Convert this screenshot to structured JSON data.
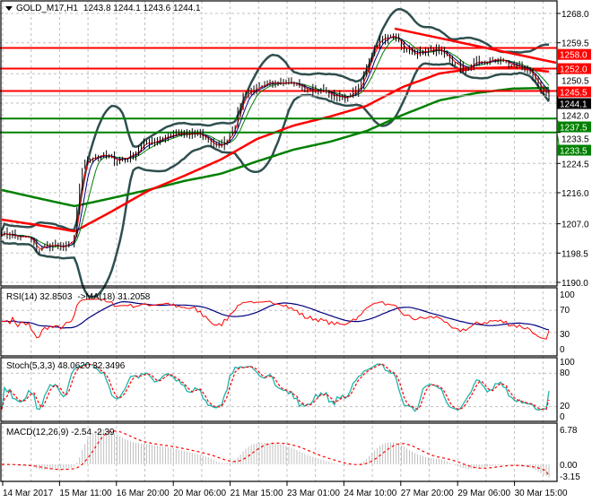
{
  "header": {
    "symbol": "GOLD_M17,H1",
    "ohlc": "1243.8 1244.1 1243.6 1244.1"
  },
  "rsi_header": {
    "label": "RSI(14) 32.8503",
    "ma": "->MA(18) 31.2058"
  },
  "stoch_header": {
    "label": "Stoch(5,3,3) 48.0620 32.3496"
  },
  "macd_header": {
    "label": "MACD(12,26,9) -2.54 -2.39"
  },
  "price_axis": [
    "1268.0",
    "1259.5",
    "1250.5",
    "1242.0",
    "1233.5",
    "1224.5",
    "1216.0",
    "1207.0",
    "1198.5",
    "1190.0"
  ],
  "rsi_axis": [
    "100",
    "70",
    "30",
    "0"
  ],
  "stoch_axis": [
    "100",
    "80",
    "20",
    "0"
  ],
  "macd_axis": [
    "6.78",
    "0.00",
    "-3.15"
  ],
  "time_axis": [
    "14 Mar 2017",
    "15 Mar 11:00",
    "16 Mar 20:00",
    "20 Mar 06:00",
    "21 Mar 15:00",
    "23 Mar 01:00",
    "24 Mar 10:00",
    "27 Mar 20:00",
    "29 Mar 06:00",
    "30 Mar 15:00"
  ],
  "levels": [
    {
      "price": 1258.0,
      "label": "1258.0",
      "color": "#ff0000"
    },
    {
      "price": 1252.0,
      "label": "1252.0",
      "color": "#ff0000"
    },
    {
      "price": 1245.5,
      "label": "1245.5",
      "color": "#ff0000"
    },
    {
      "price": 1237.5,
      "label": "1237.5",
      "color": "#008000"
    },
    {
      "price": 1233.5,
      "label": "1233.5",
      "color": "#008000"
    }
  ],
  "current_price": {
    "label": "1244.1",
    "price": 1244.1
  },
  "colors": {
    "candle": "#000000",
    "bollinger": "#2f4f4f",
    "ma_red": "#ff0000",
    "ma_green": "#008000",
    "rsi": "#ff0000",
    "rsi_ma": "#000080",
    "stoch_main": "#20b2aa",
    "stoch_signal": "#ff0000",
    "macd_hist": "#c0c0c0",
    "macd_signal": "#ff0000",
    "grid": "#c0c0c0"
  },
  "chart_data": {
    "type": "line",
    "title": "GOLD_M17,H1",
    "ylim": [
      1190.0,
      1268.0
    ],
    "close": [
      1204.3,
      1203.8,
      1203.0,
      1203.0,
      1199.1,
      1201.0,
      1200.2,
      1200.4,
      1201.7,
      1223.8,
      1226.4,
      1227.0,
      1226.0,
      1225.6,
      1226.4,
      1228.0,
      1230.3,
      1231.0,
      1232.0,
      1232.6,
      1232.9,
      1232.9,
      1232.9,
      1231.6,
      1229.0,
      1231.0,
      1236.0,
      1244.6,
      1245.9,
      1246.2,
      1248.0,
      1248.5,
      1248.0,
      1247.2,
      1245.9,
      1245.9,
      1245.1,
      1244.1,
      1243.3,
      1245.1,
      1246.7,
      1255.0,
      1260.2,
      1261.0,
      1260.2,
      1257.6,
      1256.3,
      1256.8,
      1257.3,
      1257.6,
      1253.7,
      1252.4,
      1252.4,
      1253.7,
      1254.2,
      1254.5,
      1254.2,
      1253.2,
      1252.4,
      1251.1,
      1245.5,
      1244.1
    ],
    "ma_red": [
      1208.2,
      1206.6,
      1204.8,
      1210.5,
      1216.5,
      1220.9,
      1225.6,
      1231.6,
      1235.5,
      1238.1,
      1241.2,
      1246.7,
      1250.6,
      1252.1,
      1252.4,
      1251.1
    ],
    "ma_green": [
      1216.8,
      1214.4,
      1212.1,
      1214.4,
      1216.8,
      1219.4,
      1221.5,
      1225.1,
      1228.5,
      1230.8,
      1233.9,
      1238.6,
      1242.8,
      1244.9,
      1246.2,
      1246.4
    ],
    "trendline": [
      1263.6,
      1253.7
    ],
    "rsi_last": 32.8503,
    "rsi_ma_last": 31.2058,
    "stoch_main_last": 48.062,
    "stoch_signal_last": 32.3496,
    "macd_last": -2.54,
    "macd_signal_last": -2.39
  }
}
